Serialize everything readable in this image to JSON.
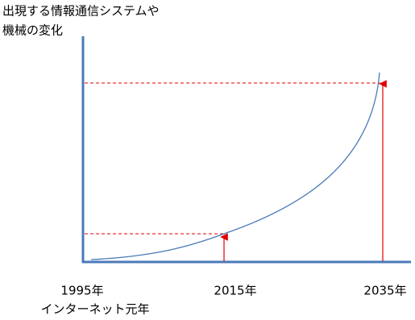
{
  "title": {
    "lines": [
      "出現する情報通信システムや",
      "機械の変化"
    ]
  },
  "x_labels": [
    {
      "year": "1995年",
      "note": "インターネット元年"
    },
    {
      "year": "2015年"
    },
    {
      "year": "2035年"
    }
  ]
}
